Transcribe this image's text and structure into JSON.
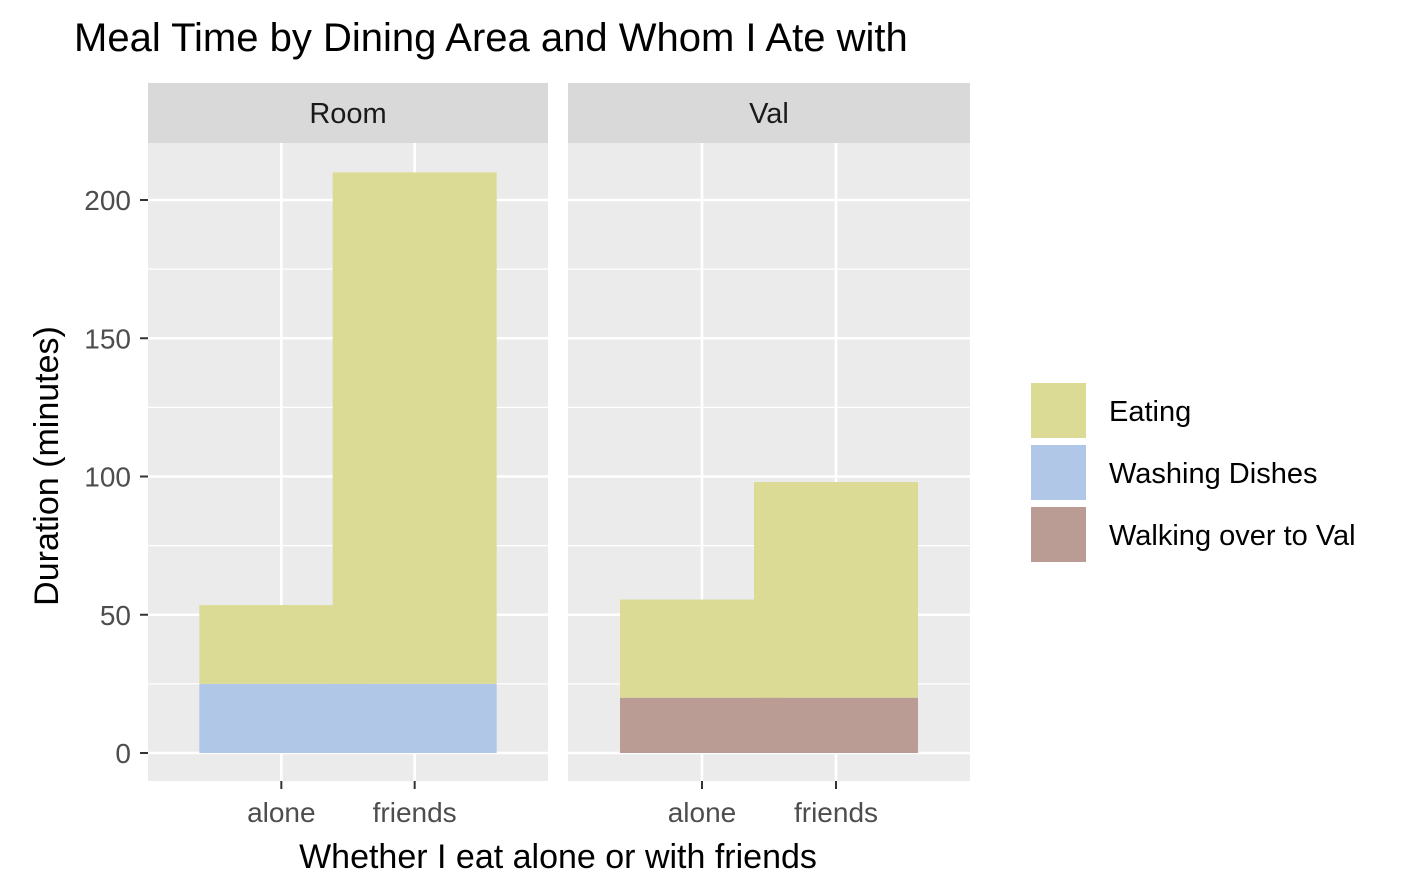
{
  "chart_data": {
    "type": "bar",
    "stacked": true,
    "title": "Meal Time by Dining Area and Whom I Ate with",
    "xlabel": "Whether I eat alone or with friends",
    "ylabel": "Duration (minutes)",
    "ylim": [
      0,
      220
    ],
    "yticks": [
      0,
      50,
      100,
      150,
      200
    ],
    "grid": true,
    "legend_position": "right",
    "categories": [
      "alone",
      "friends"
    ],
    "colors": {
      "Eating": "#dcdb96",
      "Washing Dishes": "#b1c7e7",
      "Walking over to Val": "#bb9c94",
      "panel_bg": "#ebebeb",
      "strip_bg": "#d9d9d9",
      "grid": "#ffffff"
    },
    "legend": [
      "Eating",
      "Washing Dishes",
      "Walking over to Val"
    ],
    "facets": [
      {
        "name": "Room",
        "series": [
          {
            "name": "Washing Dishes",
            "values": [
              25,
              25
            ]
          },
          {
            "name": "Eating",
            "values": [
              28.5,
              185
            ]
          }
        ]
      },
      {
        "name": "Val",
        "series": [
          {
            "name": "Walking over to Val",
            "values": [
              20,
              20
            ]
          },
          {
            "name": "Eating",
            "values": [
              35.5,
              78
            ]
          }
        ]
      }
    ]
  }
}
